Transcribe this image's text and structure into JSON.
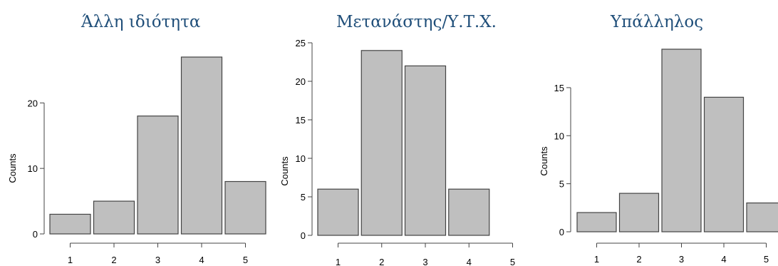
{
  "colors": {
    "bar_fill": "#bfbfbf",
    "bar_stroke": "#444444",
    "title": "#1f4e79",
    "axis": "#444444"
  },
  "chart_data": [
    {
      "type": "bar",
      "title": "Άλλη ιδιότητα",
      "ylabel": "Counts",
      "categories": [
        "1",
        "2",
        "3",
        "4",
        "5"
      ],
      "values": [
        3,
        5,
        18,
        27,
        8
      ],
      "ylim": [
        0,
        27
      ],
      "yticks": [
        0,
        10,
        20
      ],
      "grid": false
    },
    {
      "type": "bar",
      "title": "Μετανάστης/Υ.Τ.Χ.",
      "ylabel": "Counts",
      "categories": [
        "1",
        "2",
        "3",
        "4",
        "5"
      ],
      "values": [
        6,
        24,
        22,
        6,
        0
      ],
      "ylim": [
        0,
        25
      ],
      "yticks": [
        0,
        5,
        10,
        15,
        20,
        25
      ],
      "grid": false
    },
    {
      "type": "bar",
      "title": "Υπάλληλος",
      "ylabel": "Counts",
      "categories": [
        "1",
        "2",
        "3",
        "4",
        "5"
      ],
      "values": [
        2,
        4,
        19,
        14,
        3
      ],
      "ylim": [
        0,
        19
      ],
      "yticks": [
        0,
        5,
        10,
        15
      ],
      "grid": false
    }
  ]
}
